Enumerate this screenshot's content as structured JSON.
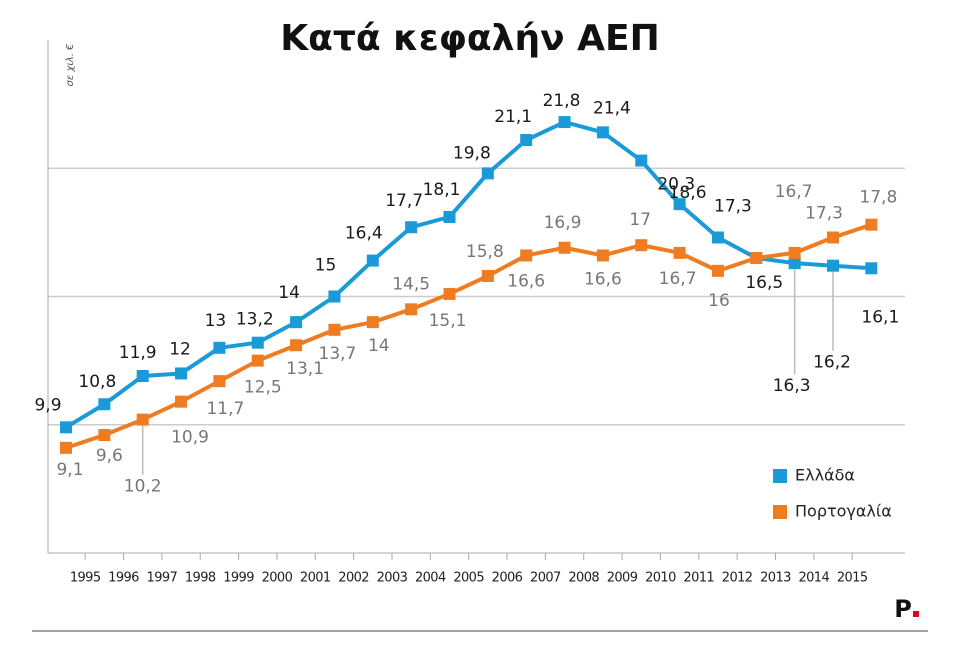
{
  "chart_data": {
    "type": "line",
    "title": "Κατά κεφαλήν ΑΕΠ",
    "y_label": "σε χιλ. €",
    "logo": "P",
    "categories": [
      "1995",
      "1996",
      "1997",
      "1998",
      "1999",
      "2000",
      "2001",
      "2002",
      "2003",
      "2004",
      "2005",
      "2006",
      "2007",
      "2008",
      "2009",
      "2010",
      "2011",
      "2012",
      "2013",
      "2014",
      "2015",
      null
    ],
    "series": [
      {
        "name": "Ελλάδα",
        "color": "#1a9ad6",
        "values": [
          9.9,
          10.8,
          11.9,
          12,
          13,
          13.2,
          14,
          15,
          16.4,
          17.7,
          18.1,
          19.8,
          21.1,
          21.8,
          21.4,
          20.3,
          18.6,
          17.3,
          16.5,
          16.3,
          16.2,
          16.1
        ],
        "value_labels": [
          "9,9",
          "10,8",
          "11,9",
          "12",
          "13",
          "13,2",
          "14",
          "15",
          "16,4",
          "17,7",
          "18,1",
          "19,8",
          "21,1",
          "21,8",
          "21,4",
          "20,3",
          "18,6",
          "17,3",
          "16,5",
          "16,3",
          "16,2",
          "16,1"
        ]
      },
      {
        "name": "Πορτογαλία",
        "color": "#f07c22",
        "values": [
          9.1,
          9.6,
          10.2,
          10.9,
          11.7,
          12.5,
          13.1,
          13.7,
          14,
          14.5,
          15.1,
          15.8,
          16.6,
          16.9,
          16.6,
          17,
          16.7,
          16,
          16.5,
          16.7,
          17.3,
          17.8
        ],
        "value_labels": [
          "9,1",
          "9,6",
          "10,2",
          "10,9",
          "11,7",
          "12,5",
          "13,1",
          "13,7",
          "14",
          "14,5",
          "15,1",
          "15,8",
          "16,6",
          "16,9",
          "16,6",
          "17",
          "16,7",
          "16",
          null,
          "16,7",
          "17,3",
          "17,8"
        ]
      }
    ],
    "ylim": [
      5,
      25
    ],
    "yticks": [
      10,
      15,
      20
    ],
    "grid": true,
    "legend": "lower right"
  }
}
